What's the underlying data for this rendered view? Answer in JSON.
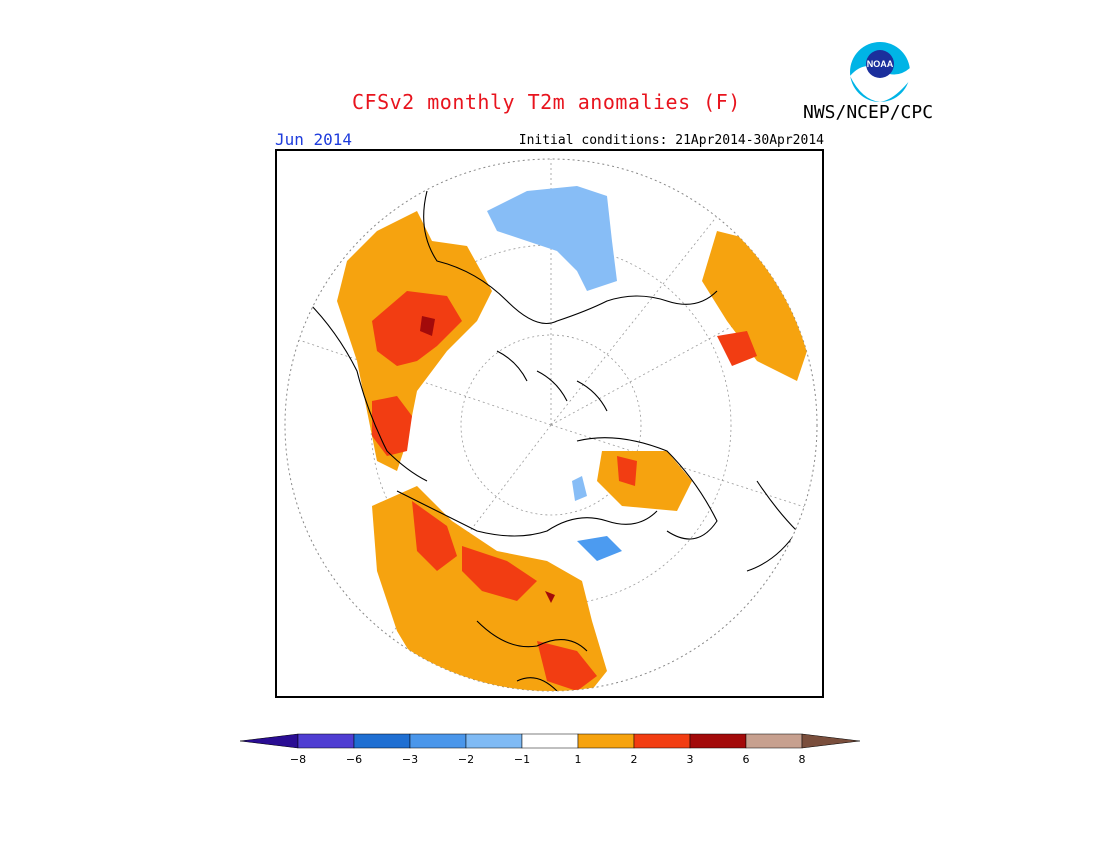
{
  "header": {
    "title": "CFSv2 monthly T2m anomalies (F)",
    "agency": "NWS/NCEP/CPC",
    "logo_text": "NOAA",
    "target_month": "Jun 2014",
    "initial_conditions": "Initial conditions: 21Apr2014-30Apr2014"
  },
  "map": {
    "projection": "polar-stereographic-north",
    "variable": "T2m anomaly (F)",
    "colors": {
      "cold_1_2": "#87bdf6",
      "cold_2_3": "#4c9bf0",
      "cold_3_6": "#1d6ed4",
      "warm_1_2": "#f6a30f",
      "warm_2_3": "#f23d12",
      "warm_3_6": "#a30a0a",
      "neutral": "#ffffff"
    }
  },
  "legend": {
    "ticks": [
      "−8",
      "−6",
      "−3",
      "−2",
      "−1",
      "1",
      "2",
      "3",
      "6",
      "8"
    ],
    "colors": [
      "#2a0d93",
      "#4f3dd2",
      "#1f6fd2",
      "#4a96ea",
      "#7fbaf4",
      "#ffffff",
      "#f6a30f",
      "#f23d12",
      "#a30a0a",
      "#c7a08f",
      "#7a4e3c"
    ]
  }
}
